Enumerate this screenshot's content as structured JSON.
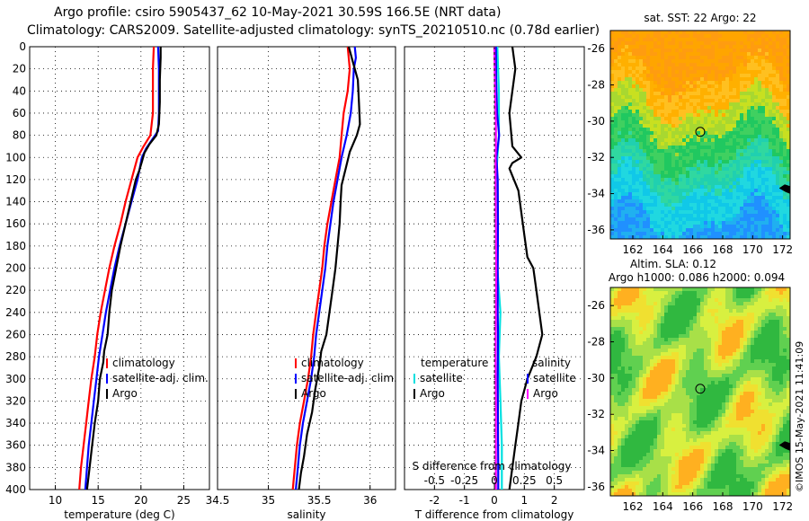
{
  "header": {
    "line1": "Argo profile: csiro 5905437_62 10-May-2021 30.59S 166.5E (NRT data)",
    "line2": "Climatology: CARS2009. Satellite-adjusted climatology: synTS_20210510.nc (0.78d earlier)"
  },
  "footer": {
    "credit": "©IMOS 15-May-2021 11:41:09"
  },
  "chart_data": [
    {
      "id": "temperature",
      "type": "line",
      "xlabel": "temperature (deg C)",
      "ylabel": "",
      "xlim": [
        7,
        28
      ],
      "ylim": [
        400,
        0
      ],
      "x_ticks": [
        "10",
        "15",
        "20",
        "25"
      ],
      "y_ticks": [
        "0",
        "20",
        "40",
        "60",
        "80",
        "100",
        "120",
        "140",
        "160",
        "180",
        "200",
        "220",
        "240",
        "260",
        "280",
        "300",
        "320",
        "340",
        "360",
        "380",
        "400"
      ],
      "legend": [
        "climatology",
        "satellite-adj. clim.",
        "Argo"
      ],
      "series": [
        {
          "name": "climatology",
          "color": "#ff0000",
          "points": [
            [
              21.5,
              0
            ],
            [
              21.4,
              20
            ],
            [
              21.4,
              40
            ],
            [
              21.4,
              60
            ],
            [
              21.1,
              80
            ],
            [
              20.3,
              90
            ],
            [
              19.6,
              100
            ],
            [
              18.9,
              120
            ],
            [
              18.2,
              140
            ],
            [
              17.6,
              160
            ],
            [
              16.9,
              180
            ],
            [
              16.3,
              200
            ],
            [
              15.8,
              220
            ],
            [
              15.3,
              240
            ],
            [
              14.9,
              260
            ],
            [
              14.6,
              280
            ],
            [
              14.2,
              300
            ],
            [
              13.9,
              320
            ],
            [
              13.6,
              340
            ],
            [
              13.3,
              360
            ],
            [
              13.0,
              380
            ],
            [
              12.8,
              400
            ]
          ]
        },
        {
          "name": "satellite-adj. clim.",
          "color": "#0000ff",
          "points": [
            [
              22.0,
              0
            ],
            [
              22.1,
              20
            ],
            [
              22.1,
              40
            ],
            [
              22.1,
              60
            ],
            [
              22.0,
              76
            ],
            [
              21.3,
              84
            ],
            [
              20.6,
              92
            ],
            [
              20.1,
              100
            ],
            [
              19.6,
              120
            ],
            [
              18.9,
              140
            ],
            [
              18.2,
              160
            ],
            [
              17.5,
              180
            ],
            [
              16.9,
              200
            ],
            [
              16.4,
              220
            ],
            [
              15.9,
              240
            ],
            [
              15.5,
              260
            ],
            [
              15.1,
              280
            ],
            [
              14.8,
              300
            ],
            [
              14.5,
              320
            ],
            [
              14.2,
              340
            ],
            [
              13.9,
              360
            ],
            [
              13.7,
              380
            ],
            [
              13.5,
              400
            ]
          ]
        },
        {
          "name": "Argo",
          "color": "#000000",
          "points": [
            [
              22.3,
              0
            ],
            [
              22.3,
              10
            ],
            [
              22.2,
              30
            ],
            [
              22.2,
              50
            ],
            [
              22.1,
              70
            ],
            [
              21.8,
              80
            ],
            [
              21.0,
              88
            ],
            [
              20.4,
              96
            ],
            [
              20.1,
              104
            ],
            [
              19.8,
              112
            ],
            [
              19.4,
              120
            ],
            [
              18.8,
              140
            ],
            [
              18.2,
              160
            ],
            [
              17.6,
              180
            ],
            [
              17.1,
              200
            ],
            [
              16.6,
              220
            ],
            [
              16.3,
              240
            ],
            [
              16.1,
              260
            ],
            [
              15.7,
              275
            ],
            [
              15.6,
              285
            ],
            [
              15.2,
              300
            ],
            [
              15.0,
              320
            ],
            [
              14.6,
              340
            ],
            [
              14.3,
              360
            ],
            [
              14.0,
              380
            ],
            [
              13.7,
              400
            ]
          ]
        }
      ]
    },
    {
      "id": "salinity",
      "type": "line",
      "xlabel": "salinity",
      "xlim": [
        34.5,
        36.25
      ],
      "ylim": [
        400,
        0
      ],
      "x_ticks": [
        "34.5",
        "35",
        "35.5",
        "36"
      ],
      "legend": [
        "climatology",
        "satellite-adj. clim.",
        "Argo"
      ],
      "series": [
        {
          "name": "climatology",
          "color": "#ff0000",
          "points": [
            [
              35.78,
              0
            ],
            [
              35.8,
              20
            ],
            [
              35.78,
              40
            ],
            [
              35.74,
              60
            ],
            [
              35.72,
              80
            ],
            [
              35.7,
              100
            ],
            [
              35.66,
              120
            ],
            [
              35.62,
              140
            ],
            [
              35.58,
              160
            ],
            [
              35.55,
              180
            ],
            [
              35.53,
              200
            ],
            [
              35.5,
              220
            ],
            [
              35.47,
              240
            ],
            [
              35.44,
              260
            ],
            [
              35.42,
              280
            ],
            [
              35.39,
              300
            ],
            [
              35.35,
              320
            ],
            [
              35.31,
              340
            ],
            [
              35.28,
              360
            ],
            [
              35.26,
              380
            ],
            [
              35.24,
              400
            ]
          ]
        },
        {
          "name": "satellite-adj. clim.",
          "color": "#0000ff",
          "points": [
            [
              35.85,
              0
            ],
            [
              35.86,
              10
            ],
            [
              35.84,
              20
            ],
            [
              35.83,
              40
            ],
            [
              35.81,
              60
            ],
            [
              35.77,
              80
            ],
            [
              35.72,
              100
            ],
            [
              35.68,
              120
            ],
            [
              35.64,
              140
            ],
            [
              35.61,
              160
            ],
            [
              35.58,
              180
            ],
            [
              35.56,
              200
            ],
            [
              35.53,
              220
            ],
            [
              35.5,
              240
            ],
            [
              35.47,
              260
            ],
            [
              35.45,
              280
            ],
            [
              35.42,
              300
            ],
            [
              35.38,
              320
            ],
            [
              35.34,
              340
            ],
            [
              35.31,
              360
            ],
            [
              35.29,
              380
            ],
            [
              35.27,
              400
            ]
          ]
        },
        {
          "name": "Argo",
          "color": "#000000",
          "points": [
            [
              35.79,
              0
            ],
            [
              35.82,
              10
            ],
            [
              35.88,
              30
            ],
            [
              35.89,
              50
            ],
            [
              35.9,
              70
            ],
            [
              35.87,
              80
            ],
            [
              35.8,
              95
            ],
            [
              35.76,
              110
            ],
            [
              35.72,
              125
            ],
            [
              35.71,
              140
            ],
            [
              35.7,
              160
            ],
            [
              35.68,
              180
            ],
            [
              35.66,
              200
            ],
            [
              35.63,
              220
            ],
            [
              35.6,
              240
            ],
            [
              35.57,
              260
            ],
            [
              35.52,
              275
            ],
            [
              35.5,
              290
            ],
            [
              35.46,
              310
            ],
            [
              35.43,
              330
            ],
            [
              35.38,
              350
            ],
            [
              35.35,
              370
            ],
            [
              35.32,
              385
            ],
            [
              35.3,
              400
            ]
          ]
        }
      ]
    },
    {
      "id": "difference",
      "type": "line",
      "xlabel": "T difference from climatology",
      "xlabel_top": "S difference from climatology",
      "xlim": [
        -3,
        3
      ],
      "ylim": [
        400,
        0
      ],
      "x_ticks": [
        "-2",
        "-1",
        "0",
        "1",
        "2"
      ],
      "x2_ticks": [
        "-0.5",
        "-0.25",
        "0",
        "0.25",
        "0.5"
      ],
      "legend_left_title": "temperature",
      "legend_left": [
        "satellite",
        "Argo"
      ],
      "legend_right_title": "salinity",
      "legend_right": [
        "satellite",
        "Argo"
      ],
      "series": [
        {
          "name": "T satellite",
          "color": "#00e0e0",
          "points": [
            [
              0.1,
              0
            ],
            [
              0.15,
              40
            ],
            [
              0.15,
              80
            ],
            [
              0.05,
              120
            ],
            [
              0.05,
              160
            ],
            [
              0.1,
              200
            ],
            [
              0.2,
              240
            ],
            [
              0.15,
              280
            ],
            [
              0.2,
              320
            ],
            [
              0.25,
              360
            ],
            [
              0.25,
              400
            ]
          ]
        },
        {
          "name": "T Argo",
          "color": "#000000",
          "points": [
            [
              0.6,
              0
            ],
            [
              0.7,
              20
            ],
            [
              0.5,
              60
            ],
            [
              0.6,
              90
            ],
            [
              0.9,
              100
            ],
            [
              0.6,
              105
            ],
            [
              0.5,
              110
            ],
            [
              0.8,
              130
            ],
            [
              0.9,
              150
            ],
            [
              1.0,
              170
            ],
            [
              1.1,
              190
            ],
            [
              1.3,
              200
            ],
            [
              1.4,
              220
            ],
            [
              1.5,
              240
            ],
            [
              1.6,
              260
            ],
            [
              1.4,
              280
            ],
            [
              1.1,
              300
            ],
            [
              0.9,
              320
            ],
            [
              0.8,
              340
            ],
            [
              0.7,
              360
            ],
            [
              0.6,
              380
            ],
            [
              0.5,
              400
            ]
          ]
        },
        {
          "name": "S satellite",
          "color": "#0000ff",
          "points": [
            [
              0.05,
              0
            ],
            [
              0.06,
              30
            ],
            [
              0.09,
              60
            ],
            [
              0.16,
              80
            ],
            [
              0.07,
              100
            ],
            [
              0.11,
              120
            ],
            [
              0.12,
              160
            ],
            [
              0.11,
              200
            ],
            [
              0.11,
              240
            ],
            [
              0.12,
              260
            ],
            [
              0.11,
              300
            ],
            [
              0.12,
              340
            ],
            [
              0.13,
              380
            ],
            [
              0.13,
              400
            ]
          ]
        },
        {
          "name": "S Argo",
          "color": "#ff00ff",
          "points": [
            [
              0.0,
              0
            ],
            [
              0.02,
              40
            ],
            [
              0.05,
              70
            ],
            [
              0.05,
              90
            ],
            [
              0.04,
              100
            ],
            [
              0.04,
              120
            ],
            [
              0.05,
              160
            ],
            [
              0.06,
              200
            ],
            [
              0.05,
              240
            ],
            [
              0.04,
              280
            ],
            [
              0.05,
              320
            ],
            [
              0.05,
              360
            ],
            [
              0.05,
              400
            ]
          ]
        }
      ]
    },
    {
      "id": "sst-map",
      "type": "heatmap",
      "title": "sat. SST: 22 Argo: 22",
      "xlim": [
        160.5,
        172.5
      ],
      "ylim": [
        -36.5,
        -25
      ],
      "x_ticks": [
        "162",
        "164",
        "166",
        "168",
        "170",
        "172"
      ],
      "y_ticks": [
        "-26",
        "-28",
        "-30",
        "-32",
        "-34",
        "-36"
      ],
      "marker": {
        "lon": 166.5,
        "lat": -30.59
      }
    },
    {
      "id": "sla-map",
      "type": "heatmap",
      "title": "Altim. SLA: 0.12",
      "subtitle": "Argo h1000: 0.086 h2000: 0.094",
      "xlim": [
        160.5,
        172.5
      ],
      "ylim": [
        -36.5,
        -25
      ],
      "x_ticks": [
        "162",
        "164",
        "166",
        "168",
        "170",
        "172"
      ],
      "y_ticks": [
        "-26",
        "-28",
        "-30",
        "-32",
        "-34",
        "-36"
      ],
      "marker": {
        "lon": 166.5,
        "lat": -30.59
      }
    }
  ]
}
